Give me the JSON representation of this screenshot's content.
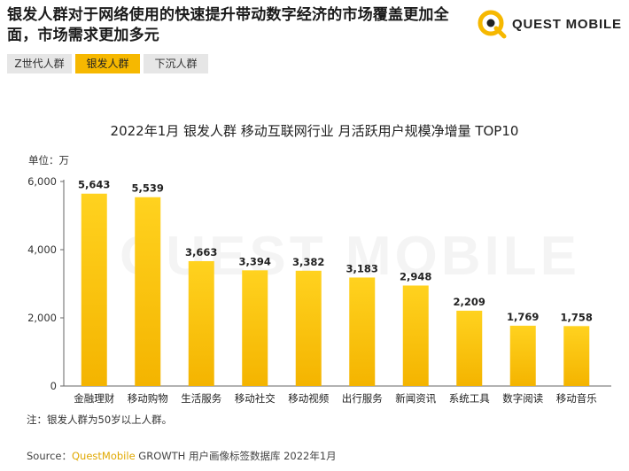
{
  "headline": "银发人群对于网络使用的快速提升带动数字经济的市场覆盖更加全面，市场需求更加多元",
  "logo": {
    "text": "QUEST MOBILE",
    "icon": "questmobile-q-logo-icon"
  },
  "tabs": [
    {
      "label": "Z世代人群",
      "active": false
    },
    {
      "label": "银发人群",
      "active": true
    },
    {
      "label": "下沉人群",
      "active": false
    }
  ],
  "chart_data": {
    "type": "bar",
    "title": "2022年1月 银发人群 移动互联网行业 月活跃用户规模净增量 TOP10",
    "unit": "单位：万",
    "categories": [
      "金融理财",
      "移动购物",
      "生活服务",
      "移动社交",
      "移动视频",
      "出行服务",
      "新闻资讯",
      "系统工具",
      "数字阅读",
      "移动音乐"
    ],
    "values": [
      5643,
      5539,
      3663,
      3394,
      3382,
      3183,
      2948,
      2209,
      1769,
      1758
    ],
    "value_labels": [
      "5,643",
      "5,539",
      "3,663",
      "3,394",
      "3,382",
      "3,183",
      "2,948",
      "2,209",
      "1,769",
      "1,758"
    ],
    "ylim": [
      0,
      6000
    ],
    "yticks": [
      0,
      2000,
      4000,
      6000
    ],
    "ytick_labels": [
      "0",
      "2,000",
      "4,000",
      "6,000"
    ],
    "grid": false,
    "bar_color_top": "#ffd21f",
    "bar_color_bottom": "#f4b400"
  },
  "watermark": "QUEST MOBILE",
  "note": "注：银发人群为50岁以上人群。",
  "source": {
    "prefix": "Source：",
    "brand": "QuestMobile",
    "suffix": " GROWTH 用户画像标签数据库 2022年1月"
  },
  "colors": {
    "accent": "#f6b800",
    "tab_inactive": "#e6e6e6"
  }
}
